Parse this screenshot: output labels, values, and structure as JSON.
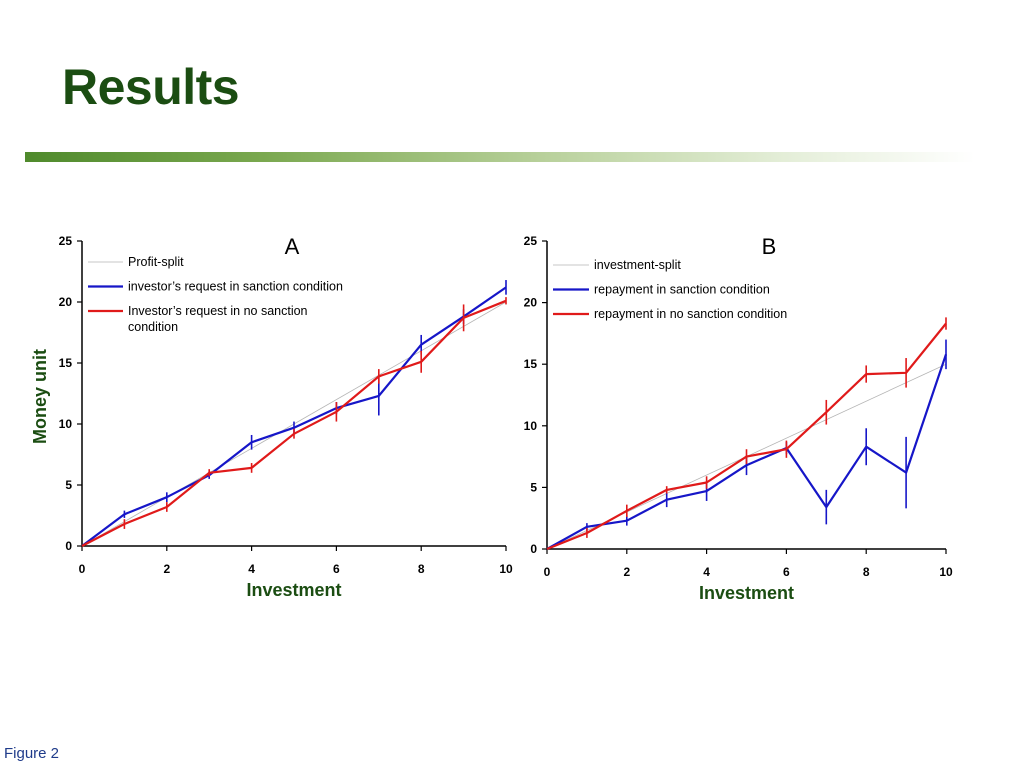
{
  "slide": {
    "title": "Results",
    "caption": "Figure 2"
  },
  "colors": {
    "title": "#1b4d12",
    "axis_label": "#1b4d12",
    "reference": "#b5b5b5",
    "blue": "#1616c8",
    "red": "#e01a1a",
    "caption": "#1f3b8a"
  },
  "chart_data": [
    {
      "type": "line",
      "panel_label": "A",
      "xlabel": "Investment",
      "ylabel": "Money unit",
      "xlim": [
        0,
        10
      ],
      "ylim": [
        0,
        25
      ],
      "x_ticks": [
        0,
        2,
        4,
        6,
        8,
        10
      ],
      "y_ticks": [
        0,
        5,
        10,
        15,
        20,
        25
      ],
      "legend_placement": "top-left",
      "series": [
        {
          "name": "Profit-split",
          "color_key": "reference",
          "x": [
            0,
            10
          ],
          "y": [
            0,
            20
          ],
          "err": [
            0,
            0
          ]
        },
        {
          "name": "investor’s request in sanction condition",
          "color_key": "blue",
          "x": [
            0,
            1,
            2,
            3,
            4,
            5,
            6,
            7,
            8,
            9,
            10
          ],
          "y": [
            0,
            2.6,
            4.0,
            5.8,
            8.5,
            9.7,
            11.3,
            12.3,
            16.5,
            18.8,
            21.2
          ],
          "err": [
            0,
            0.3,
            0.4,
            0.3,
            0.6,
            0.5,
            0.5,
            1.6,
            0.8,
            0.6,
            0.6
          ]
        },
        {
          "name": "Investor’s request in no sanction condition",
          "color_key": "red",
          "x": [
            0,
            1,
            2,
            3,
            4,
            5,
            6,
            7,
            8,
            9,
            10
          ],
          "y": [
            0,
            1.8,
            3.2,
            6.0,
            6.4,
            9.2,
            11.0,
            13.9,
            15.1,
            18.7,
            20.1
          ],
          "err": [
            0,
            0.4,
            0.4,
            0.3,
            0.4,
            0.4,
            0.8,
            0.6,
            0.9,
            1.1,
            0.3
          ]
        }
      ]
    },
    {
      "type": "line",
      "panel_label": "B",
      "xlabel": "Investment",
      "ylabel": "",
      "xlim": [
        0,
        10
      ],
      "ylim": [
        0,
        25
      ],
      "x_ticks": [
        0,
        2,
        4,
        6,
        8,
        10
      ],
      "y_ticks": [
        0,
        5,
        10,
        15,
        20,
        25
      ],
      "legend_placement": "top-left",
      "series": [
        {
          "name": "investment-split",
          "color_key": "reference",
          "x": [
            0,
            10
          ],
          "y": [
            0,
            15
          ],
          "err": [
            0,
            0
          ]
        },
        {
          "name": "repayment in sanction condition",
          "color_key": "blue",
          "x": [
            0,
            1,
            2,
            3,
            4,
            5,
            6,
            7,
            8,
            9,
            10
          ],
          "y": [
            0,
            1.8,
            2.3,
            4.0,
            4.7,
            6.8,
            8.2,
            3.4,
            8.3,
            6.2,
            15.8
          ],
          "err": [
            0,
            0.3,
            0.4,
            0.6,
            0.8,
            0.8,
            0.5,
            1.4,
            1.5,
            2.9,
            1.2
          ]
        },
        {
          "name": "repayment in no sanction condition",
          "color_key": "red",
          "x": [
            0,
            1,
            2,
            3,
            4,
            5,
            6,
            7,
            8,
            9,
            10
          ],
          "y": [
            0,
            1.3,
            3.1,
            4.8,
            5.4,
            7.5,
            8.1,
            11.1,
            14.2,
            14.3,
            18.3
          ],
          "err": [
            0,
            0.4,
            0.5,
            0.3,
            0.5,
            0.6,
            0.7,
            1.0,
            0.7,
            1.2,
            0.5
          ]
        }
      ]
    }
  ]
}
